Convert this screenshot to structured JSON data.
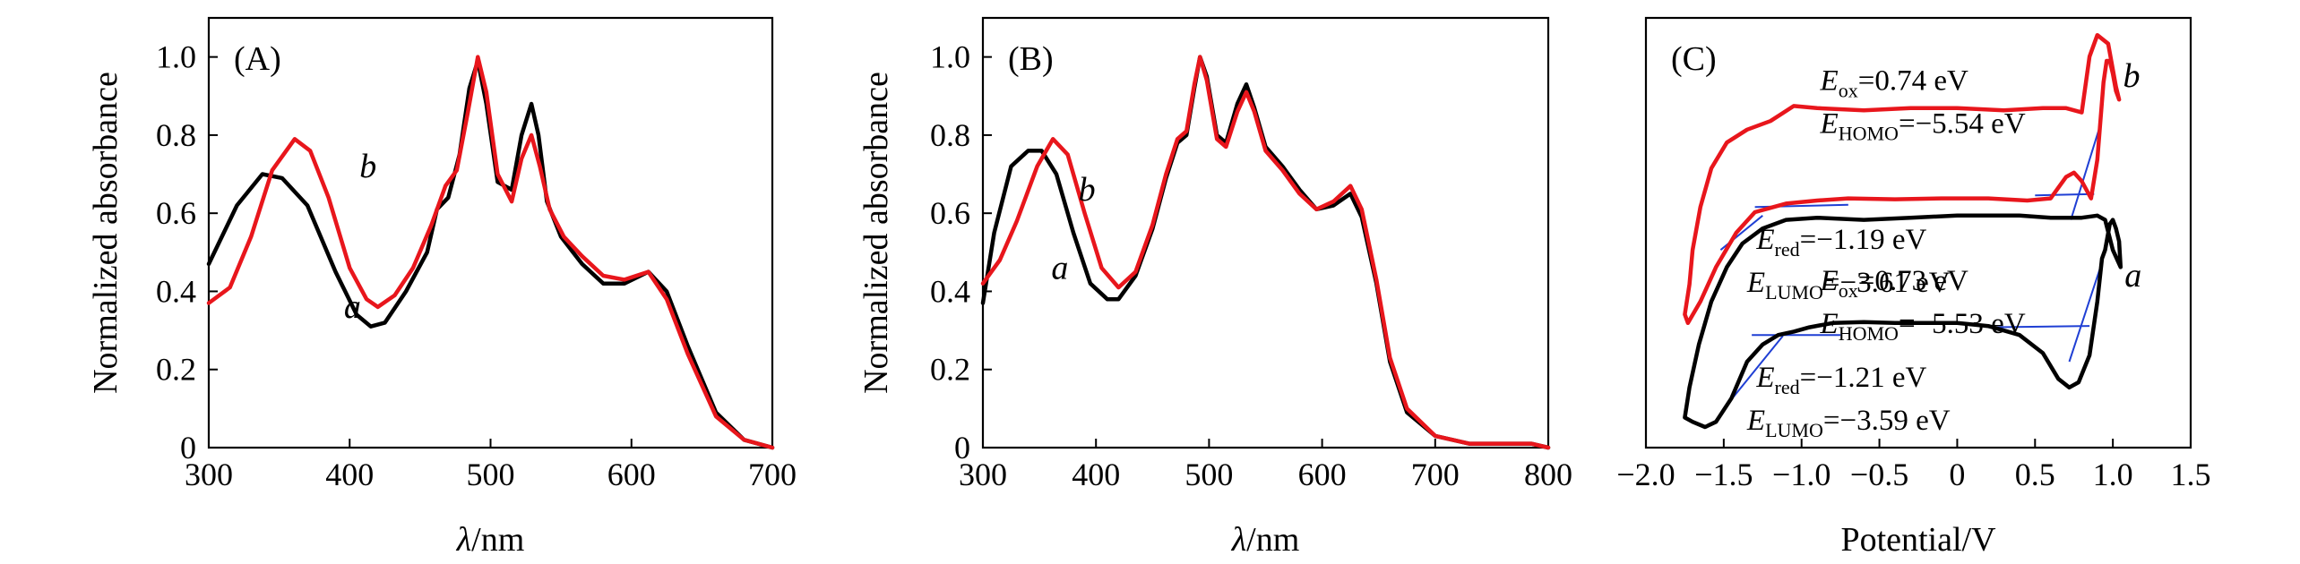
{
  "colors": {
    "series_a": "#000000",
    "series_b": "#e8161c",
    "fit": "#1f3fd4"
  },
  "chart_data": [
    {
      "type": "line",
      "panel_label": "(A)",
      "xlabel": "λ/nm",
      "ylabel": "Normalized absorbance",
      "xlim": [
        300,
        700
      ],
      "ylim": [
        0,
        1.1
      ],
      "xticks": [
        300,
        400,
        500,
        600,
        700
      ],
      "yticks": [
        0,
        0.2,
        0.4,
        0.6,
        0.8,
        1.0
      ],
      "ytick_labels": [
        "0",
        "0.2",
        "0.4",
        "0.6",
        "0.8",
        "1.0"
      ],
      "series": [
        {
          "name": "a",
          "label_x": 402,
          "label_y": 0.36,
          "x": [
            300,
            320,
            338,
            352,
            370,
            390,
            405,
            415,
            425,
            440,
            455,
            462,
            470,
            478,
            485,
            491,
            497,
            505,
            515,
            522,
            529,
            534,
            540,
            550,
            565,
            580,
            595,
            612,
            625,
            640,
            660,
            680,
            700
          ],
          "y": [
            0.47,
            0.62,
            0.7,
            0.69,
            0.62,
            0.45,
            0.34,
            0.31,
            0.32,
            0.4,
            0.5,
            0.61,
            0.64,
            0.75,
            0.92,
            0.99,
            0.88,
            0.68,
            0.66,
            0.8,
            0.88,
            0.8,
            0.63,
            0.54,
            0.47,
            0.42,
            0.42,
            0.45,
            0.4,
            0.26,
            0.09,
            0.02,
            0.0
          ]
        },
        {
          "name": "b",
          "label_x": 413,
          "label_y": 0.72,
          "x": [
            300,
            315,
            330,
            345,
            361,
            372,
            385,
            400,
            412,
            420,
            432,
            445,
            458,
            468,
            476,
            484,
            491,
            497,
            505,
            515,
            522,
            529,
            535,
            542,
            552,
            565,
            580,
            595,
            612,
            625,
            640,
            660,
            680,
            700
          ],
          "y": [
            0.37,
            0.41,
            0.54,
            0.71,
            0.79,
            0.76,
            0.64,
            0.46,
            0.38,
            0.36,
            0.39,
            0.46,
            0.57,
            0.67,
            0.71,
            0.86,
            1.0,
            0.91,
            0.7,
            0.63,
            0.74,
            0.8,
            0.72,
            0.61,
            0.54,
            0.49,
            0.44,
            0.43,
            0.45,
            0.38,
            0.24,
            0.08,
            0.02,
            0.0
          ]
        }
      ]
    },
    {
      "type": "line",
      "panel_label": "(B)",
      "xlabel": "λ/nm",
      "ylabel": "Normalized absorbance",
      "xlim": [
        300,
        800
      ],
      "ylim": [
        0,
        1.1
      ],
      "xticks": [
        300,
        400,
        500,
        600,
        700,
        800
      ],
      "yticks": [
        0,
        0.2,
        0.4,
        0.6,
        0.8,
        1.0
      ],
      "ytick_labels": [
        "0",
        "0.2",
        "0.4",
        "0.6",
        "0.8",
        "1.0"
      ],
      "series": [
        {
          "name": "a",
          "label_x": 368,
          "label_y": 0.46,
          "x": [
            300,
            310,
            325,
            340,
            352,
            365,
            380,
            395,
            410,
            420,
            435,
            450,
            462,
            472,
            480,
            487,
            492,
            498,
            507,
            515,
            525,
            533,
            540,
            550,
            565,
            580,
            595,
            610,
            625,
            635,
            648,
            660,
            675,
            700,
            730,
            760,
            785,
            800
          ],
          "y": [
            0.37,
            0.55,
            0.72,
            0.76,
            0.76,
            0.7,
            0.55,
            0.42,
            0.38,
            0.38,
            0.44,
            0.56,
            0.69,
            0.78,
            0.8,
            0.92,
            1.0,
            0.95,
            0.8,
            0.78,
            0.88,
            0.93,
            0.87,
            0.77,
            0.72,
            0.66,
            0.61,
            0.62,
            0.65,
            0.59,
            0.42,
            0.22,
            0.09,
            0.03,
            0.01,
            0.01,
            0.01,
            0.0
          ]
        },
        {
          "name": "b",
          "label_x": 392,
          "label_y": 0.66,
          "x": [
            300,
            315,
            330,
            348,
            362,
            375,
            390,
            405,
            420,
            435,
            450,
            462,
            472,
            480,
            487,
            492,
            498,
            507,
            515,
            525,
            533,
            540,
            550,
            565,
            580,
            595,
            610,
            625,
            635,
            648,
            660,
            675,
            700,
            730,
            760,
            785,
            800
          ],
          "y": [
            0.42,
            0.48,
            0.58,
            0.72,
            0.79,
            0.75,
            0.6,
            0.46,
            0.41,
            0.45,
            0.57,
            0.7,
            0.79,
            0.81,
            0.93,
            1.0,
            0.94,
            0.79,
            0.77,
            0.86,
            0.91,
            0.86,
            0.76,
            0.71,
            0.65,
            0.61,
            0.63,
            0.67,
            0.61,
            0.43,
            0.23,
            0.1,
            0.03,
            0.01,
            0.01,
            0.01,
            0.0
          ]
        }
      ]
    },
    {
      "type": "line",
      "panel_label": "(C)",
      "xlabel": "Potential/V",
      "ylabel": "",
      "xlim": [
        -2.0,
        1.5
      ],
      "ylim": [
        0,
        1
      ],
      "yaxis_visible": false,
      "xticks": [
        -2.0,
        -1.5,
        -1.0,
        -0.5,
        0,
        0.5,
        1.0,
        1.5
      ],
      "xtick_labels": [
        "−2.0",
        "−1.5",
        "−1.0",
        "−0.5",
        "0",
        "0.5",
        "1.0",
        "1.5"
      ],
      "series": [
        {
          "name": "a",
          "label_x": 1.13,
          "label_y": 0.4,
          "x": [
            -1.75,
            -1.7,
            -1.62,
            -1.55,
            -1.45,
            -1.35,
            -1.25,
            -1.15,
            -1.05,
            -0.95,
            -0.8,
            -0.6,
            -0.4,
            -0.2,
            0.0,
            0.2,
            0.4,
            0.55,
            0.65,
            0.72,
            0.78,
            0.85,
            0.9,
            0.93,
            0.95,
            0.98,
            1.0,
            1.02,
            1.04,
            1.05,
            1.0,
            0.95,
            0.9,
            0.8,
            0.6,
            0.4,
            0.2,
            0.0,
            -0.3,
            -0.6,
            -0.9,
            -1.1,
            -1.25,
            -1.38,
            -1.48,
            -1.58,
            -1.66,
            -1.72,
            -1.75
          ],
          "y": [
            0.07,
            0.06,
            0.048,
            0.06,
            0.115,
            0.2,
            0.24,
            0.262,
            0.27,
            0.28,
            0.29,
            0.292,
            0.29,
            0.29,
            0.29,
            0.283,
            0.262,
            0.22,
            0.16,
            0.14,
            0.152,
            0.215,
            0.34,
            0.44,
            0.46,
            0.52,
            0.53,
            0.51,
            0.48,
            0.42,
            0.46,
            0.53,
            0.54,
            0.535,
            0.535,
            0.54,
            0.54,
            0.54,
            0.535,
            0.53,
            0.535,
            0.53,
            0.51,
            0.475,
            0.42,
            0.34,
            0.24,
            0.14,
            0.07
          ]
        },
        {
          "name": "b",
          "label_x": 1.12,
          "label_y": 0.865,
          "x": [
            -1.75,
            -1.73,
            -1.65,
            -1.55,
            -1.42,
            -1.3,
            -1.2,
            -1.1,
            -0.9,
            -0.7,
            -0.4,
            -0.1,
            0.2,
            0.45,
            0.6,
            0.7,
            0.75,
            0.8,
            0.86,
            0.9,
            0.94,
            0.96,
            0.98,
            1.0,
            1.02,
            1.03,
            1.04,
            1.02,
            0.97,
            0.9,
            0.85,
            0.8,
            0.7,
            0.55,
            0.3,
            0.0,
            -0.3,
            -0.6,
            -0.9,
            -1.05,
            -1.2,
            -1.35,
            -1.48,
            -1.58,
            -1.65,
            -1.7,
            -1.72,
            -1.75
          ],
          "y": [
            0.31,
            0.29,
            0.34,
            0.42,
            0.5,
            0.548,
            0.558,
            0.568,
            0.575,
            0.58,
            0.578,
            0.58,
            0.58,
            0.575,
            0.58,
            0.63,
            0.64,
            0.62,
            0.58,
            0.67,
            0.85,
            0.9,
            0.9,
            0.87,
            0.83,
            0.82,
            0.81,
            0.84,
            0.94,
            0.96,
            0.91,
            0.78,
            0.79,
            0.79,
            0.785,
            0.79,
            0.79,
            0.785,
            0.79,
            0.795,
            0.76,
            0.74,
            0.71,
            0.65,
            0.56,
            0.46,
            0.38,
            0.31
          ]
        }
      ],
      "fit_lines": [
        {
          "name": "a-oxidation-tangent",
          "x": [
            0.72,
            0.92
          ],
          "y": [
            0.2,
            0.42
          ]
        },
        {
          "name": "a-baseline-right",
          "x": [
            0.2,
            0.85
          ],
          "y": [
            0.28,
            0.283
          ]
        },
        {
          "name": "a-reduction-tangent",
          "x": [
            -1.5,
            -1.12
          ],
          "y": [
            0.09,
            0.26
          ]
        },
        {
          "name": "a-baseline-left",
          "x": [
            -1.32,
            -0.75
          ],
          "y": [
            0.262,
            0.262
          ]
        },
        {
          "name": "b-oxidation-tangent",
          "x": [
            0.73,
            0.91
          ],
          "y": [
            0.53,
            0.74
          ]
        },
        {
          "name": "b-baseline-right",
          "x": [
            0.5,
            0.88
          ],
          "y": [
            0.587,
            0.59
          ]
        },
        {
          "name": "b-reduction-tangent",
          "x": [
            -1.52,
            -1.25
          ],
          "y": [
            0.46,
            0.54
          ]
        },
        {
          "name": "b-baseline-left",
          "x": [
            -1.3,
            -0.7
          ],
          "y": [
            0.56,
            0.565
          ]
        }
      ],
      "annotations": [
        {
          "id": "b_eox",
          "symbol": "E",
          "sub": "ox",
          "value": "=0.74 eV",
          "x": -0.88,
          "y": 0.855
        },
        {
          "id": "b_ehomo",
          "symbol": "E",
          "sub": "HOMO",
          "value": "=−5.54 eV",
          "x": -0.88,
          "y": 0.755
        },
        {
          "id": "b_ered",
          "symbol": "E",
          "sub": "red",
          "value": "=−1.19 eV",
          "x": -1.29,
          "y": 0.485
        },
        {
          "id": "b_elumo",
          "symbol": "E",
          "sub": "LUMO",
          "value": "=−3.61 eV",
          "x": -1.35,
          "y": 0.385
        },
        {
          "id": "a_eox",
          "symbol": "E",
          "sub": "ox",
          "value": "=0.73 eV",
          "x": -0.88,
          "y": 0.39
        },
        {
          "id": "a_ehomo",
          "symbol": "E",
          "sub": "HOMO",
          "value": "=−5.53 eV",
          "x": -0.88,
          "y": 0.29
        },
        {
          "id": "a_ered",
          "symbol": "E",
          "sub": "red",
          "value": "=−1.21 eV",
          "x": -1.29,
          "y": 0.165
        },
        {
          "id": "a_elumo",
          "symbol": "E",
          "sub": "LUMO",
          "value": "=−3.59 eV",
          "x": -1.35,
          "y": 0.065
        }
      ]
    }
  ]
}
